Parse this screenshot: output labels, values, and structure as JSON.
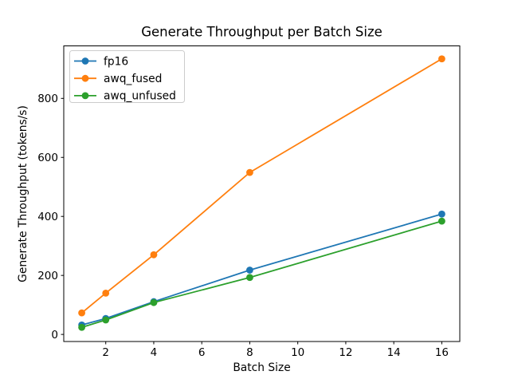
{
  "figure": {
    "background": "#ffffff",
    "axis_color": "#000000"
  },
  "chart_data": {
    "type": "line",
    "title": "Generate Throughput per Batch Size",
    "xlabel": "Batch Size",
    "ylabel": "Generate Throughput (tokens/s)",
    "x": [
      1,
      2,
      4,
      8,
      16
    ],
    "series": [
      {
        "name": "fp16",
        "color": "#1f77b4",
        "values": [
          32,
          54,
          111,
          218,
          408
        ]
      },
      {
        "name": "awq_fused",
        "color": "#ff7f0e",
        "values": [
          73,
          140,
          270,
          549,
          934
        ]
      },
      {
        "name": "awq_unfused",
        "color": "#2ca02c",
        "values": [
          24,
          49,
          108,
          193,
          384
        ]
      }
    ],
    "xticks": [
      2,
      4,
      6,
      8,
      10,
      12,
      14,
      16
    ],
    "yticks": [
      0,
      200,
      400,
      600,
      800
    ],
    "xlim": [
      0.25,
      16.75
    ],
    "ylim": [
      -24,
      978
    ],
    "grid": false,
    "marker": "circle",
    "legend": {
      "position": "upper-left",
      "entries": [
        "fp16",
        "awq_fused",
        "awq_unfused"
      ],
      "background": "#ffffff",
      "border_color": "#cccccc"
    }
  }
}
